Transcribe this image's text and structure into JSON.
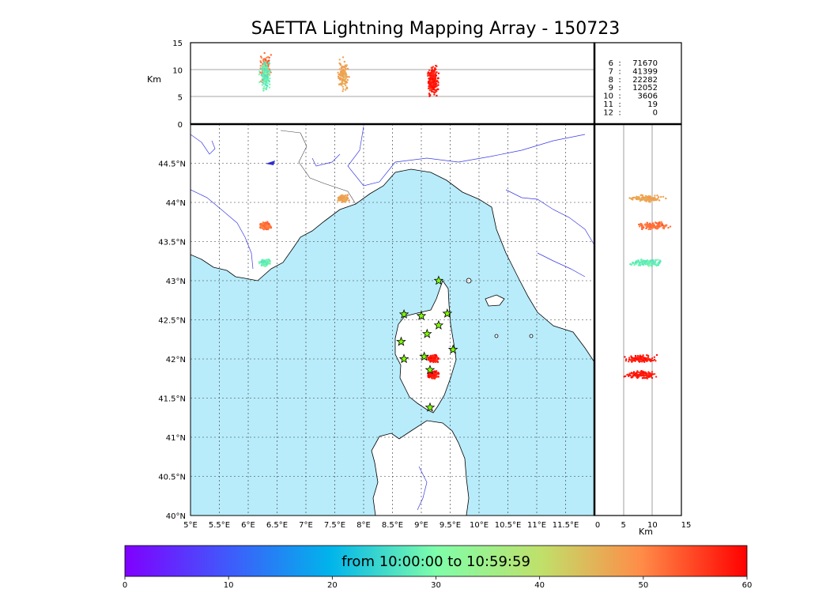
{
  "title": "SAETTA Lightning Mapping Array - 150723",
  "map": {
    "lon_range": [
      5,
      12
    ],
    "lat_range": [
      40,
      45
    ],
    "lon_ticks": [
      "5°E",
      "5.5°E",
      "6°E",
      "6.5°E",
      "7°E",
      "7.5°E",
      "8°E",
      "8.5°E",
      "9°E",
      "9.5°E",
      "10°E",
      "10.5°E",
      "11°E",
      "11.5°E"
    ],
    "lat_ticks": [
      "40°N",
      "40.5°N",
      "41°N",
      "41.5°N",
      "42°N",
      "42.5°N",
      "43°N",
      "43.5°N",
      "44°N",
      "44.5°N"
    ],
    "sea_color": "#b8ecfb",
    "coast_color": "#000000",
    "river_color": "#3a3ae6"
  },
  "alt_panel": {
    "ylabel": "Km",
    "yticks": [
      "0",
      "5",
      "10",
      "15"
    ],
    "ylim": [
      0,
      15
    ]
  },
  "side_panel": {
    "xlabel": "Km",
    "xticks": [
      "0",
      "5",
      "10",
      "15"
    ],
    "xlim": [
      0,
      15
    ]
  },
  "stats": [
    {
      "label": "6",
      "value": "71670",
      "color": "#000000"
    },
    {
      "label": "7",
      "value": "41399",
      "color": "#ff0000"
    },
    {
      "label": "8",
      "value": "22282",
      "color": "#000000"
    },
    {
      "label": "9",
      "value": "12052",
      "color": "#000000"
    },
    {
      "label": "10",
      "value": "3606",
      "color": "#000000"
    },
    {
      "label": "11",
      "value": "19",
      "color": "#000000"
    },
    {
      "label": "12",
      "value": "0",
      "color": "#000000"
    }
  ],
  "colorbar": {
    "label": "from 10:00:00 to 10:59:59",
    "ticks": [
      "0",
      "10",
      "20",
      "30",
      "40",
      "50",
      "60"
    ],
    "range": [
      0,
      60
    ]
  },
  "stations": [
    [
      9.3,
      43.0
    ],
    [
      8.7,
      42.57
    ],
    [
      9.0,
      42.55
    ],
    [
      9.45,
      42.58
    ],
    [
      9.3,
      42.43
    ],
    [
      9.1,
      42.32
    ],
    [
      8.65,
      42.22
    ],
    [
      9.55,
      42.12
    ],
    [
      9.05,
      42.03
    ],
    [
      8.7,
      42.0
    ],
    [
      9.15,
      41.86
    ],
    [
      9.15,
      41.38
    ]
  ],
  "chart_data": {
    "type": "scatter",
    "clusters": [
      {
        "lon": 6.3,
        "lat": 43.7,
        "alt": 10.5,
        "minute": 52
      },
      {
        "lon": 6.3,
        "lat": 43.23,
        "alt": 9,
        "minute": 28
      },
      {
        "lon": 7.65,
        "lat": 44.05,
        "alt": 9,
        "minute": 47
      },
      {
        "lon": 9.2,
        "lat": 42.0,
        "alt": 8,
        "minute": 58
      },
      {
        "lon": 9.2,
        "lat": 41.8,
        "alt": 8,
        "minute": 58
      }
    ]
  }
}
